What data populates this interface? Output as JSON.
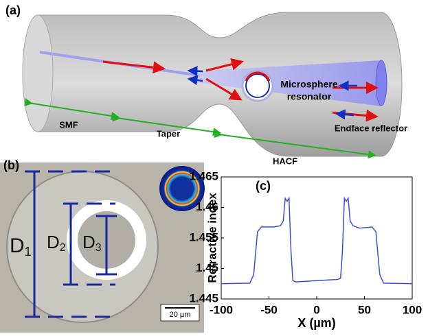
{
  "figure": {
    "panel_a": {
      "label": "(a)",
      "smf": "SMF",
      "taper": "Taper",
      "hacf": "HACF",
      "sphere_line1": "Microsphere",
      "sphere_line2": "resonator",
      "endface": "Endface reflector"
    },
    "panel_b": {
      "label": "(b)",
      "d1": "D",
      "d1_sub": "1",
      "d2": "D",
      "d2_sub": "2",
      "d3": "D",
      "d3_sub": "3",
      "scale": "20 µm"
    },
    "panel_c": {
      "label": "(c)"
    }
  },
  "chart_data": {
    "type": "line",
    "xlabel": "X (µm)",
    "ylabel": "Refractive index",
    "xlim": [
      -100,
      100
    ],
    "xticks": [
      -100,
      -50,
      0,
      50,
      100
    ],
    "ylim": [
      1.445,
      1.465
    ],
    "yticks": [
      1.445,
      1.45,
      1.455,
      1.46,
      1.465
    ],
    "series": [
      {
        "name": "Refractive index",
        "color": "#3d4ed8",
        "x": [
          -100,
          -70,
          -66,
          -62,
          -58,
          -45,
          -38,
          -35,
          -33,
          -31,
          -29,
          -27,
          -25,
          -22,
          0,
          22,
          25,
          27,
          29,
          31,
          33,
          35,
          38,
          45,
          58,
          62,
          66,
          70,
          100
        ],
        "values": [
          1.4475,
          1.4476,
          1.449,
          1.456,
          1.4568,
          1.4568,
          1.457,
          1.4578,
          1.4615,
          1.461,
          1.4615,
          1.453,
          1.448,
          1.4478,
          1.448,
          1.4482,
          1.4484,
          1.453,
          1.4615,
          1.461,
          1.4615,
          1.4578,
          1.457,
          1.4566,
          1.4568,
          1.456,
          1.449,
          1.4476,
          1.4475
        ]
      }
    ]
  }
}
